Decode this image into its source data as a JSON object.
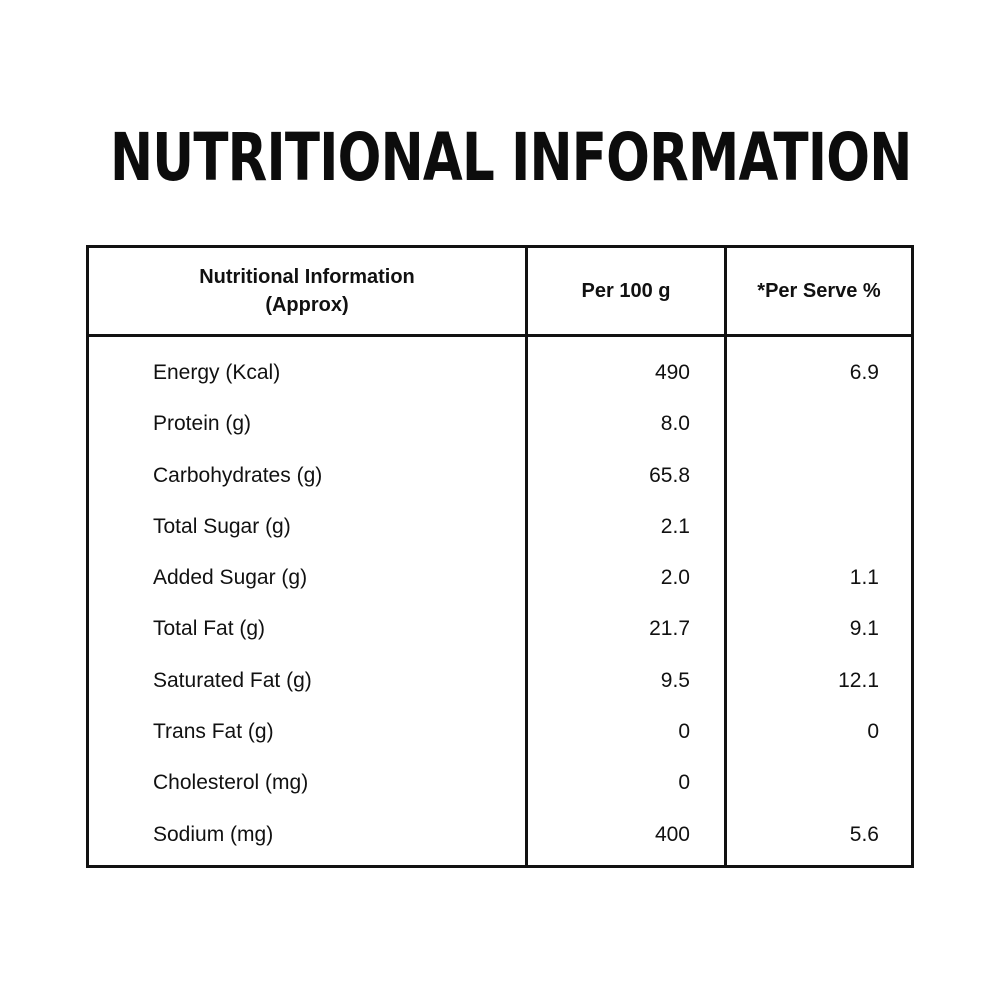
{
  "title": "NUTRITIONAL INFORMATION",
  "table": {
    "headers": {
      "nutrient": "Nutritional Information\n(Approx)",
      "per_100g": "Per 100 g",
      "per_serve": "*Per Serve %"
    },
    "rows": [
      {
        "nutrient": "Energy (Kcal)",
        "per_100g": "490",
        "per_serve": "6.9"
      },
      {
        "nutrient": "Protein (g)",
        "per_100g": "8.0",
        "per_serve": ""
      },
      {
        "nutrient": "Carbohydrates (g)",
        "per_100g": "65.8",
        "per_serve": ""
      },
      {
        "nutrient": "Total Sugar (g)",
        "per_100g": "2.1",
        "per_serve": ""
      },
      {
        "nutrient": "Added Sugar (g)",
        "per_100g": "2.0",
        "per_serve": "1.1"
      },
      {
        "nutrient": "Total Fat (g)",
        "per_100g": "21.7",
        "per_serve": "9.1"
      },
      {
        "nutrient": "Saturated Fat (g)",
        "per_100g": "9.5",
        "per_serve": "12.1"
      },
      {
        "nutrient": "Trans Fat (g)",
        "per_100g": "0",
        "per_serve": "0"
      },
      {
        "nutrient": "Cholesterol (mg)",
        "per_100g": "0",
        "per_serve": ""
      },
      {
        "nutrient": "Sodium (mg)",
        "per_100g": "400",
        "per_serve": "5.6"
      }
    ]
  }
}
